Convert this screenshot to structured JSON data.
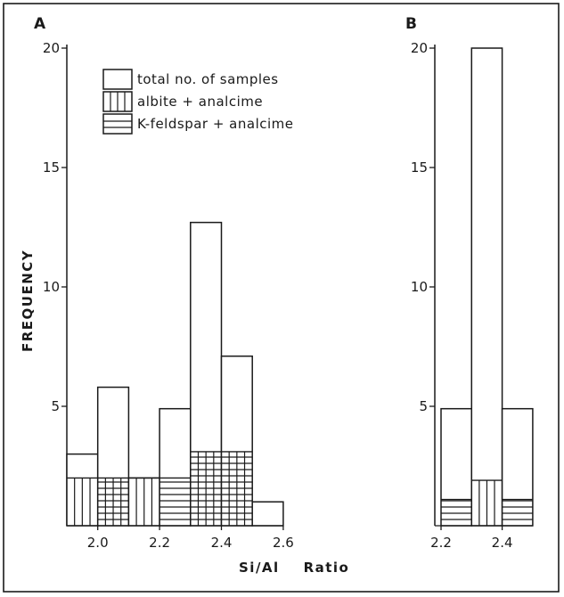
{
  "chart_data": [
    {
      "type": "bar",
      "panel_label": "A",
      "x": [
        1.9,
        2.0,
        2.1,
        2.2,
        2.3,
        2.4,
        2.5
      ],
      "bin_width": 0.1,
      "series": [
        {
          "name": "total no. of samples",
          "values": [
            3,
            5.8,
            2,
            4.9,
            12.7,
            7.1,
            1
          ]
        },
        {
          "name": "albite + analcime",
          "values": [
            2,
            0,
            2,
            0,
            0,
            3.1,
            0
          ]
        },
        {
          "name": "K-feldspar + analcime",
          "values": [
            0,
            2,
            0,
            2,
            3.1,
            0,
            0
          ]
        }
      ],
      "x_ticks": [
        "2.0",
        "2.2",
        "2.4",
        "2.6"
      ],
      "y_ticks": [
        "5",
        "10",
        "15",
        "20"
      ],
      "ylim": [
        0,
        20
      ],
      "xlim": [
        1.9,
        2.6
      ],
      "ylabel": "FREQUENCY",
      "legend": {
        "placement": "top-left",
        "items": [
          {
            "label": "total no. of samples",
            "pattern": "none"
          },
          {
            "label": "albite + analcime",
            "pattern": "vertical"
          },
          {
            "label": "K-feldspar + analcime",
            "pattern": "horizontal"
          }
        ]
      }
    },
    {
      "type": "bar",
      "panel_label": "B",
      "x": [
        2.2,
        2.3,
        2.4
      ],
      "bin_width": 0.1,
      "series": [
        {
          "name": "total no. of samples",
          "values": [
            4.9,
            20,
            4.9
          ]
        },
        {
          "name": "albite + analcime",
          "values": [
            0,
            1.9,
            0
          ]
        },
        {
          "name": "K-feldspar + analcime",
          "values": [
            1.1,
            0,
            1.1
          ]
        }
      ],
      "x_ticks": [
        "2.2",
        "2.4"
      ],
      "y_ticks": [
        "5",
        "10",
        "15",
        "20"
      ],
      "ylim": [
        0,
        20
      ],
      "xlim": [
        2.2,
        2.5
      ]
    }
  ],
  "shared_xlabel": "Si/Al    Ratio",
  "line_color": "#1a1a1a",
  "fill_color": "#ffffff"
}
